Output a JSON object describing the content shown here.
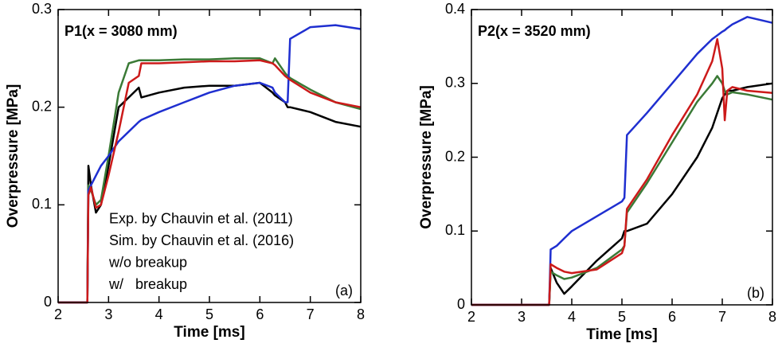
{
  "chart_data": [
    {
      "type": "line",
      "title": "P1(x = 3080 mm)",
      "x_label": "Time [ms]",
      "y_label": "Overpressure [MPa]",
      "annotation": "(a)",
      "legend": "lower left",
      "x": [
        2,
        2.58,
        2.6,
        2.65,
        2.75,
        2.85,
        3.0,
        3.2,
        3.4,
        3.6,
        3.65,
        4,
        4.5,
        5,
        5.5,
        6,
        6.25,
        6.3,
        6.5,
        6.55,
        6.6,
        7,
        7.5,
        8
      ],
      "xlim": [
        2,
        8
      ],
      "xticks": [
        2,
        3,
        4,
        5,
        6,
        7,
        8
      ],
      "ylim": [
        0,
        0.3
      ],
      "yticks": [
        0,
        0.1,
        0.2,
        0.3
      ],
      "series": [
        {
          "name": "Exp. by Chauvin et al. (2011)",
          "color": "#000000",
          "values": [
            0,
            0,
            0.14,
            0.12,
            0.092,
            0.1,
            0.14,
            0.2,
            0.21,
            0.22,
            0.21,
            0.215,
            0.22,
            0.222,
            0.222,
            0.225,
            0.215,
            0.212,
            0.205,
            0.2,
            0.2,
            0.195,
            0.185,
            0.18
          ]
        },
        {
          "name": "Sim. by Chauvin et al. (2016)",
          "color": "#3a7a36",
          "values": [
            0,
            0,
            0.12,
            0.115,
            0.1,
            0.105,
            0.15,
            0.215,
            0.245,
            0.248,
            0.248,
            0.248,
            0.249,
            0.249,
            0.25,
            0.25,
            0.245,
            0.25,
            0.235,
            0.232,
            0.23,
            0.218,
            0.205,
            0.198
          ]
        },
        {
          "name": "w/o breakup",
          "color": "#1f2fd0",
          "values": [
            0,
            0,
            0.115,
            0.12,
            0.13,
            0.14,
            0.15,
            0.165,
            0.175,
            0.185,
            0.187,
            0.195,
            0.205,
            0.215,
            0.222,
            0.225,
            0.22,
            0.215,
            0.205,
            0.205,
            0.27,
            0.282,
            0.284,
            0.28
          ]
        },
        {
          "name": "w/   breakup",
          "color": "#cc1a1a",
          "values": [
            0,
            0,
            0.11,
            0.118,
            0.097,
            0.1,
            0.13,
            0.175,
            0.225,
            0.232,
            0.245,
            0.245,
            0.246,
            0.247,
            0.247,
            0.248,
            0.245,
            0.243,
            0.232,
            0.23,
            0.228,
            0.215,
            0.205,
            0.2
          ]
        }
      ]
    },
    {
      "type": "line",
      "title": "P2(x = 3520 mm)",
      "x_label": "Time [ms]",
      "y_label": "Overpressure [MPa]",
      "annotation": "(b)",
      "x": [
        2,
        3.55,
        3.58,
        3.7,
        3.85,
        4,
        4.5,
        5,
        5.05,
        5.1,
        5.5,
        6,
        6.5,
        6.8,
        6.9,
        7.0,
        7.05,
        7.1,
        7.2,
        7.5,
        8
      ],
      "xlim": [
        2,
        8
      ],
      "xticks": [
        2,
        3,
        4,
        5,
        6,
        7,
        8
      ],
      "ylim": [
        0,
        0.4
      ],
      "yticks": [
        0,
        0.1,
        0.2,
        0.3,
        0.4
      ],
      "series": [
        {
          "color": "#000000",
          "values": [
            0,
            0,
            0.05,
            0.03,
            0.015,
            0.025,
            0.06,
            0.09,
            0.1,
            0.1,
            0.11,
            0.15,
            0.2,
            0.24,
            0.26,
            0.28,
            0.285,
            0.29,
            0.29,
            0.295,
            0.3
          ]
        },
        {
          "color": "#3a7a36",
          "values": [
            0,
            0,
            0.045,
            0.04,
            0.035,
            0.037,
            0.05,
            0.075,
            0.08,
            0.125,
            0.165,
            0.22,
            0.275,
            0.3,
            0.31,
            0.3,
            0.29,
            0.285,
            0.288,
            0.285,
            0.278
          ]
        },
        {
          "color": "#1f2fd0",
          "values": [
            0,
            0,
            0.075,
            0.08,
            0.09,
            0.1,
            0.12,
            0.14,
            0.145,
            0.23,
            0.26,
            0.3,
            0.34,
            0.36,
            0.365,
            0.37,
            0.372,
            0.375,
            0.38,
            0.39,
            0.382
          ]
        },
        {
          "color": "#cc1a1a",
          "values": [
            0,
            0,
            0.055,
            0.05,
            0.045,
            0.043,
            0.048,
            0.07,
            0.08,
            0.13,
            0.17,
            0.23,
            0.285,
            0.33,
            0.36,
            0.32,
            0.25,
            0.29,
            0.295,
            0.29,
            0.287
          ]
        }
      ]
    }
  ]
}
